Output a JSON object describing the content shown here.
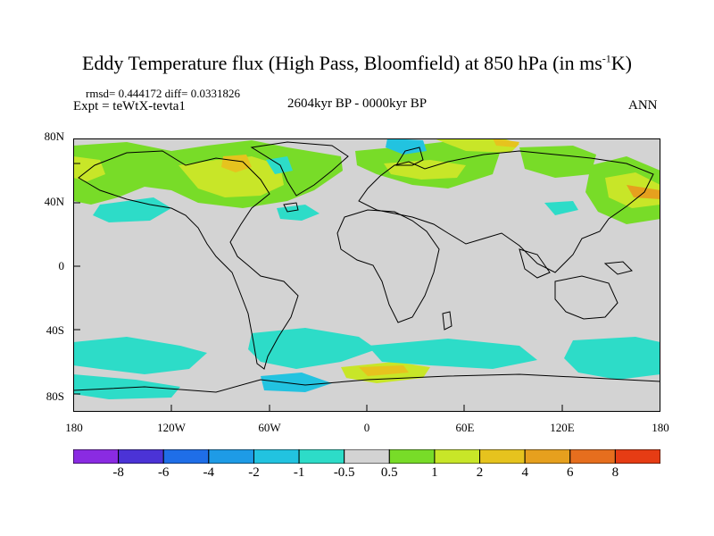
{
  "title": {
    "main": "Eddy Temperature flux (High Pass, Bloomfield) at 850 hPa (in ms",
    "sup": "-1",
    "tail": "K)"
  },
  "header": {
    "rmsd": "rmsd= 0.444172 diff= 0.0331826",
    "expt": "Expt = teWtX-tevta1",
    "period": "2604kyr BP - 0000kyr BP",
    "season": "ANN"
  },
  "axes": {
    "lat_labels": [
      "80N",
      "40N",
      "0",
      "40S",
      "80S"
    ],
    "lon_labels": [
      "180",
      "120W",
      "60W",
      "0",
      "60E",
      "120E",
      "180"
    ]
  },
  "colorbar": {
    "labels": [
      "-8",
      "-6",
      "-4",
      "-2",
      "-1",
      "-0.5",
      "0.5",
      "1",
      "2",
      "4",
      "6",
      "8"
    ],
    "colors": [
      "#8a2be2",
      "#4b33d6",
      "#1f6ee8",
      "#1e9be6",
      "#22c3e0",
      "#2ddcc8",
      "#d3d3d3",
      "#78dc28",
      "#c8e628",
      "#e6c31e",
      "#e6a01e",
      "#e66e1e",
      "#e63c14"
    ]
  },
  "map": {
    "ocean_color": "#d3d3d3",
    "coast_color": "#000000"
  }
}
